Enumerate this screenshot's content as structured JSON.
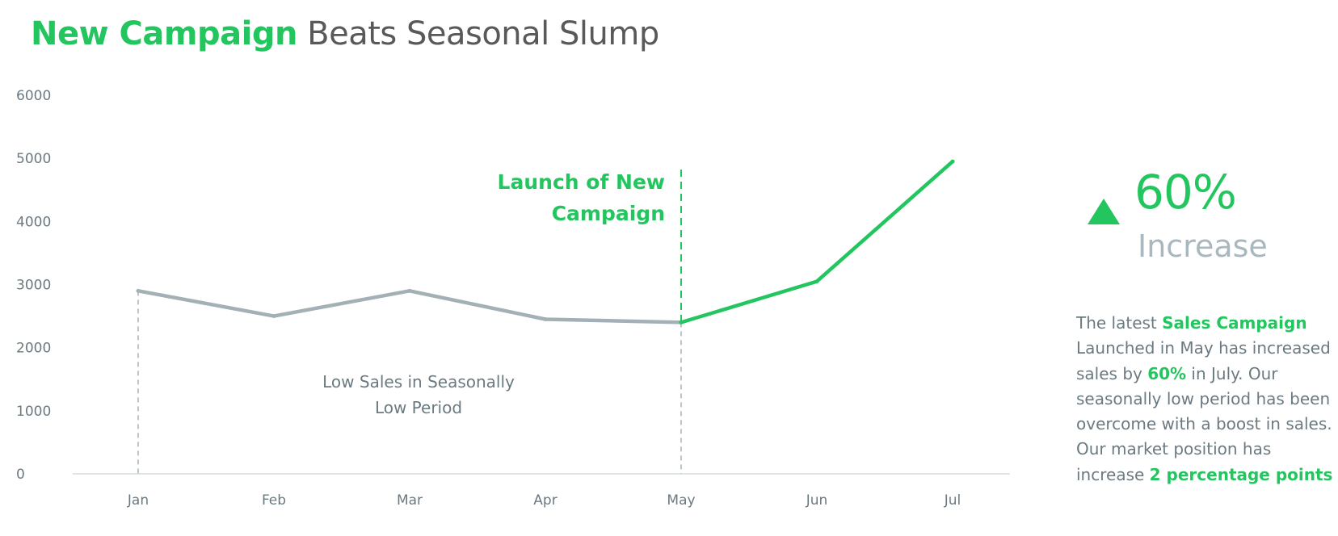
{
  "title": {
    "accent": "New Campaign",
    "rest": " Beats Seasonal Slump"
  },
  "colors": {
    "accent": "#22c55e",
    "muted_line": "#a3b1b7",
    "axis_text": "#6b7a80",
    "title_grey": "#595959",
    "kpi_label": "#a9b8bf"
  },
  "chart_data": {
    "type": "line",
    "categories": [
      "Jan",
      "Feb",
      "Mar",
      "Apr",
      "May",
      "Jun",
      "Jul"
    ],
    "series": [
      {
        "values": [
          2900,
          2500,
          2900,
          2450,
          2400,
          3050,
          4950
        ]
      }
    ],
    "highlight_from_index": 4,
    "ylim": [
      0,
      6000
    ],
    "yticks": [
      0,
      1000,
      2000,
      3000,
      4000,
      5000,
      6000
    ],
    "xlabel": "",
    "ylabel": "",
    "grid": false,
    "annotations": {
      "launch_line_1": "Launch of New",
      "launch_line_2": "Campaign",
      "low_line_1": "Low Sales in Seasonally",
      "low_line_2": "Low Period"
    }
  },
  "kpi": {
    "value": "60%",
    "label": "Increase",
    "icon": "triangle-up-icon"
  },
  "description": {
    "t1": "The latest ",
    "h1": "Sales Campaign",
    "t2": " Launched in May has increased sales by ",
    "h2": "60%",
    "t3": " in July. Our seasonally low period has been overcome with a boost in sales. Our market position has increase ",
    "h3": "2 percentage points"
  }
}
